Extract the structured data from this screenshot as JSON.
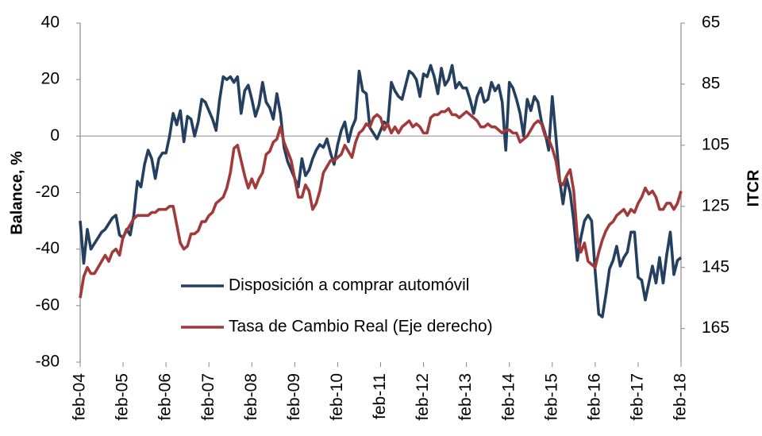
{
  "chart_data": {
    "type": "line",
    "categories": [
      "feb-04",
      null,
      null,
      null,
      null,
      null,
      null,
      null,
      null,
      null,
      null,
      null,
      "feb-05",
      null,
      null,
      null,
      null,
      null,
      null,
      null,
      null,
      null,
      null,
      null,
      "feb-06",
      null,
      null,
      null,
      null,
      null,
      null,
      null,
      null,
      null,
      null,
      null,
      "feb-07",
      null,
      null,
      null,
      null,
      null,
      null,
      null,
      null,
      null,
      null,
      null,
      "feb-08",
      null,
      null,
      null,
      null,
      null,
      null,
      null,
      null,
      null,
      null,
      null,
      "feb-09",
      null,
      null,
      null,
      null,
      null,
      null,
      null,
      null,
      null,
      null,
      null,
      "feb-10",
      null,
      null,
      null,
      null,
      null,
      null,
      null,
      null,
      null,
      null,
      null,
      "feb-11",
      null,
      null,
      null,
      null,
      null,
      null,
      null,
      null,
      null,
      null,
      null,
      "feb-12",
      null,
      null,
      null,
      null,
      null,
      null,
      null,
      null,
      null,
      null,
      null,
      "feb-13",
      null,
      null,
      null,
      null,
      null,
      null,
      null,
      null,
      null,
      null,
      null,
      "feb-14",
      null,
      null,
      null,
      null,
      null,
      null,
      null,
      null,
      null,
      null,
      null,
      "feb-15",
      null,
      null,
      null,
      null,
      null,
      null,
      null,
      null,
      null,
      null,
      null,
      "feb-16",
      null,
      null,
      null,
      null,
      null,
      null,
      null,
      null,
      null,
      null,
      null,
      "feb-17",
      null,
      null,
      null,
      null,
      null,
      null,
      null,
      null,
      null,
      null,
      null,
      "feb-18"
    ],
    "series": [
      {
        "name": "Disposición a comprar automóvil",
        "color": "#243f60",
        "values": [
          -30,
          -45,
          -33,
          -40,
          -38,
          -36,
          -34,
          -33,
          -31,
          -29,
          -28,
          -35,
          -36,
          -33,
          -35,
          -28,
          -16,
          -18,
          -10,
          -5,
          -8,
          -15,
          -8,
          -6,
          -6,
          0,
          8,
          4,
          9,
          -2,
          7,
          6,
          0,
          5,
          13,
          12,
          9,
          6,
          2,
          13,
          21,
          20,
          21,
          19,
          21,
          8,
          16,
          18,
          13,
          7,
          11,
          19,
          12,
          10,
          6,
          15,
          8,
          -4,
          -9,
          -12,
          -15,
          -18,
          -8,
          -14,
          -12,
          -8,
          -5,
          -3,
          -4,
          -1,
          -6,
          -10,
          -3,
          2,
          5,
          -2,
          3,
          6,
          23,
          16,
          15,
          3,
          1,
          -1,
          2,
          5,
          4,
          19,
          16,
          14,
          13,
          18,
          23,
          22,
          20,
          14,
          22,
          21,
          25,
          21,
          15,
          24,
          18,
          20,
          25,
          17,
          19,
          17,
          17,
          13,
          8,
          14,
          17,
          12,
          13,
          19,
          16,
          18,
          12,
          -5,
          19,
          17,
          13,
          8,
          0,
          13,
          9,
          14,
          12,
          5,
          1,
          -5,
          14,
          0,
          -15,
          -24,
          -15,
          -20,
          -30,
          -44,
          -36,
          -30,
          -28,
          -30,
          -48,
          -63,
          -64,
          -56,
          -47,
          -44,
          -39,
          -46,
          -43,
          -41,
          -34,
          -34,
          -50,
          -51,
          -58,
          -52,
          -46,
          -52,
          -43,
          -52,
          -42,
          -34,
          -49,
          -44,
          -43
        ]
      },
      {
        "name": "Tasa de Cambio Real (Eje derecho)",
        "color": "#a13a3a",
        "axis": "y2",
        "values": [
          155,
          148,
          145,
          147,
          147,
          145,
          143,
          141,
          143,
          140,
          139,
          141,
          135,
          133,
          131,
          129,
          128,
          128,
          128,
          128,
          127,
          127,
          126,
          126,
          126,
          125,
          125,
          131,
          137,
          139,
          138,
          134,
          134,
          133,
          130,
          130,
          128,
          127,
          124,
          123,
          122,
          119,
          114,
          106,
          105,
          110,
          115,
          119,
          116,
          119,
          116,
          114,
          108,
          107,
          104,
          103,
          99,
          104,
          107,
          110,
          116,
          122,
          122,
          118,
          120,
          126,
          124,
          120,
          114,
          112,
          110,
          110,
          109,
          108,
          105,
          107,
          109,
          104,
          101,
          100,
          98,
          99,
          96,
          95,
          96,
          100,
          98,
          101,
          99,
          101,
          99,
          98,
          97,
          99,
          98,
          99,
          101,
          101,
          96,
          95,
          95,
          94,
          94,
          93,
          95,
          95,
          96,
          95,
          94,
          95,
          96,
          97,
          99,
          99,
          98,
          99,
          99,
          100,
          101,
          100,
          100,
          101,
          101,
          104,
          103,
          102,
          100,
          98,
          97,
          98,
          102,
          103,
          106,
          110,
          117,
          118,
          115,
          113,
          120,
          135,
          140,
          137,
          143,
          144,
          145,
          140,
          136,
          133,
          131,
          130,
          128,
          127,
          126,
          128,
          126,
          127,
          124,
          122,
          119,
          121,
          120,
          122,
          126,
          126,
          124,
          124,
          126,
          124,
          120
        ]
      }
    ],
    "y_label": "Balance, %",
    "y2_label": "ITCR",
    "ylim": [
      -80,
      40
    ],
    "yticks": [
      -80,
      -60,
      -40,
      -20,
      0,
      20,
      40
    ],
    "y2lim": [
      65,
      176
    ],
    "y2ticks": [
      65,
      85,
      105,
      125,
      145,
      165
    ],
    "y2_inverted": true,
    "zero_line": true,
    "legend": "lower center"
  }
}
